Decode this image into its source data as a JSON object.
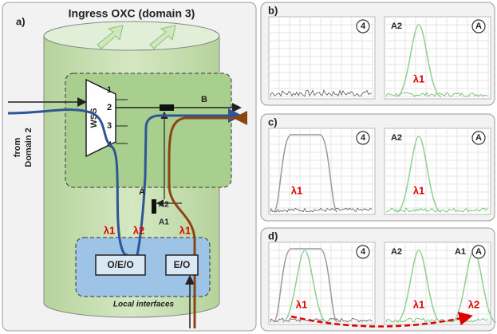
{
  "panel_a": {
    "label": "a)",
    "title": "Ingress OXC (domain 3)",
    "source": [
      "from",
      "Domain 2"
    ],
    "wss": {
      "label": "WSS",
      "ports": [
        "1",
        "2",
        "3",
        "4"
      ]
    },
    "points": {
      "B": "B",
      "A": "A",
      "A2": "A2",
      "A1": "A1"
    },
    "wavelengths": [
      "λ1",
      "λ2",
      "λ1"
    ],
    "boxes": [
      "O/E/O",
      "E/O"
    ],
    "local": "Local interfaces"
  },
  "panels": [
    {
      "label": "b)",
      "plots": [
        {
          "port": "4"
        },
        {
          "port": "A",
          "labels": [
            "A2",
            "λ1"
          ]
        }
      ]
    },
    {
      "label": "c)",
      "plots": [
        {
          "port": "4",
          "labels": [
            "λ1"
          ]
        },
        {
          "port": "A",
          "labels": [
            "A2",
            "λ1"
          ]
        }
      ]
    },
    {
      "label": "d)",
      "plots": [
        {
          "port": "4",
          "labels": [
            "λ1"
          ]
        },
        {
          "port": "A",
          "labels": [
            "A2",
            "A1",
            "λ1",
            "λ2"
          ]
        }
      ]
    }
  ]
}
